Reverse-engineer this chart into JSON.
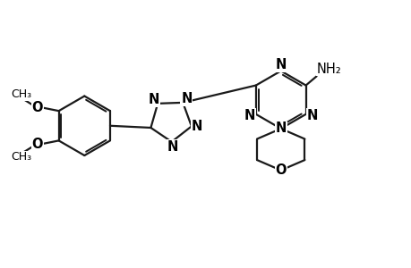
{
  "background_color": "#ffffff",
  "line_color": "#1a1a1a",
  "line_width": 1.6,
  "font_size": 10.5,
  "font_size_small": 9.5,
  "xlim": [
    0,
    10
  ],
  "ylim": [
    0,
    6.5
  ]
}
